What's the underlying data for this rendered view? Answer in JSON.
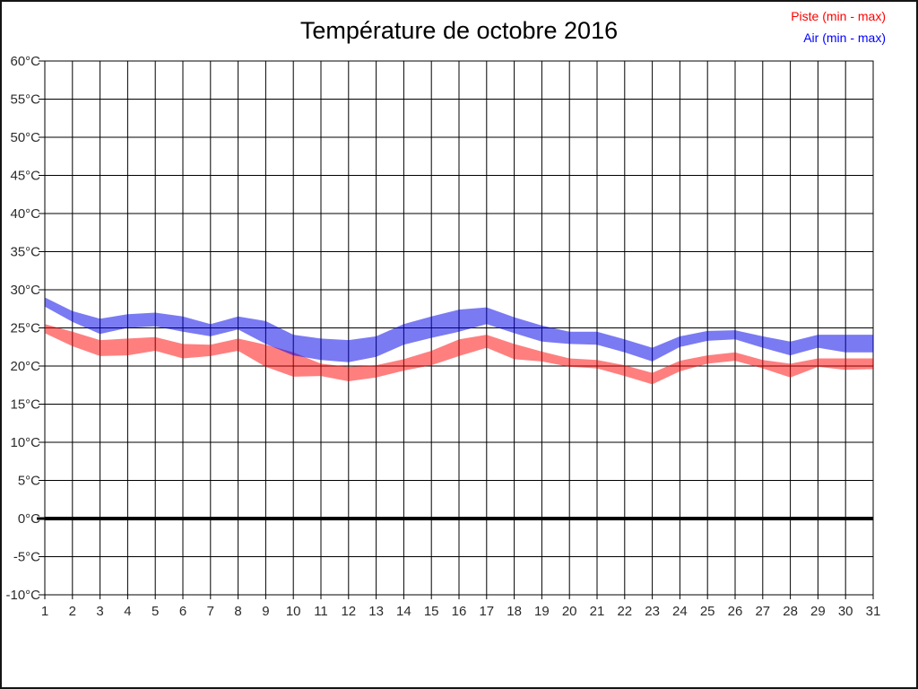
{
  "page": {
    "border_color": "#141414",
    "background": "#ffffff"
  },
  "title": "Température de octobre 2016",
  "legend": {
    "position": "top-right",
    "items": [
      {
        "label": "Piste (min - max)",
        "color": "#ff0000"
      },
      {
        "label": "Air (min - max)",
        "color": "#0000ff"
      }
    ]
  },
  "chart_data": {
    "type": "area",
    "subtype": "min-max-band",
    "title": "Température de octobre 2016",
    "xlabel": "",
    "ylabel": "",
    "x": [
      1,
      2,
      3,
      4,
      5,
      6,
      7,
      8,
      9,
      10,
      11,
      12,
      13,
      14,
      15,
      16,
      17,
      18,
      19,
      20,
      21,
      22,
      23,
      24,
      25,
      26,
      27,
      28,
      29,
      30,
      31
    ],
    "x_tick_labels": [
      "1",
      "2",
      "3",
      "4",
      "5",
      "6",
      "7",
      "8",
      "9",
      "10",
      "11",
      "12",
      "13",
      "14",
      "15",
      "16",
      "17",
      "18",
      "19",
      "20",
      "21",
      "22",
      "23",
      "24",
      "25",
      "26",
      "27",
      "28",
      "29",
      "30",
      "31"
    ],
    "y_tick_values": [
      60,
      55,
      50,
      45,
      40,
      35,
      30,
      25,
      20,
      15,
      10,
      5,
      0,
      -5,
      -10
    ],
    "y_tick_labels": [
      "60°C",
      "55°C",
      "50°C",
      "45°C",
      "40°C",
      "35°C",
      "30°C",
      "25°C",
      "20°C",
      "15°C",
      "10°C",
      "5°C",
      "0°C",
      "-5°C",
      "-10°C"
    ],
    "ylim": [
      -10,
      60
    ],
    "xlim": [
      1,
      31
    ],
    "grid": true,
    "zero_line_at": 0,
    "legend_position": "top-right",
    "units": "°C",
    "series": [
      {
        "name": "Piste (min - max)",
        "fill": "rgba(255,0,0,0.5)",
        "label_color": "#ff0000",
        "min": [
          24.3,
          22.6,
          21.3,
          21.4,
          22.0,
          21.0,
          21.3,
          22.0,
          19.9,
          18.6,
          18.7,
          18.0,
          18.5,
          19.4,
          20.1,
          21.3,
          22.4,
          20.9,
          20.6,
          19.9,
          19.7,
          18.7,
          17.6,
          19.3,
          20.3,
          20.7,
          19.7,
          18.5,
          19.9,
          19.5,
          19.6
        ],
        "max": [
          25.5,
          24.5,
          23.4,
          23.6,
          23.8,
          22.9,
          22.8,
          23.6,
          22.8,
          21.8,
          20.3,
          19.9,
          20.1,
          20.9,
          22.0,
          23.5,
          24.1,
          22.9,
          21.9,
          21.0,
          20.8,
          20.1,
          19.1,
          20.7,
          21.4,
          21.8,
          20.8,
          20.3,
          21.0,
          21.0,
          21.0
        ]
      },
      {
        "name": "Air (min - max)",
        "fill": "rgba(0,0,232,0.52)",
        "label_color": "#0000ff",
        "min": [
          27.8,
          25.8,
          24.2,
          25.0,
          25.2,
          24.5,
          23.9,
          24.8,
          22.9,
          21.4,
          20.8,
          20.5,
          21.2,
          22.8,
          23.7,
          24.5,
          25.5,
          24.3,
          23.2,
          22.9,
          22.8,
          21.8,
          20.6,
          22.5,
          23.3,
          23.5,
          22.4,
          21.4,
          22.4,
          21.8,
          21.8
        ],
        "max": [
          29.0,
          27.2,
          26.2,
          26.8,
          27.0,
          26.5,
          25.5,
          26.5,
          25.9,
          24.1,
          23.6,
          23.4,
          23.9,
          25.5,
          26.5,
          27.4,
          27.7,
          26.4,
          25.3,
          24.5,
          24.5,
          23.5,
          22.4,
          23.9,
          24.6,
          24.7,
          23.9,
          23.2,
          24.1,
          24.1,
          24.1
        ]
      }
    ]
  }
}
